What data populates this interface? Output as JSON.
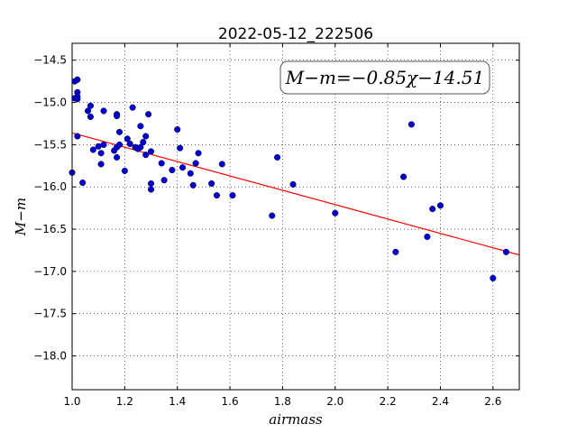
{
  "chart_data": {
    "type": "scatter",
    "title": "2022-05-12_222506",
    "xlabel": "airmass",
    "ylabel": "M−m",
    "xlim": [
      1.0,
      2.7
    ],
    "ylim": [
      -18.4,
      -14.3
    ],
    "x_ticks": [
      "1.0",
      "1.2",
      "1.4",
      "1.6",
      "1.8",
      "2.0",
      "2.2",
      "2.4",
      "2.6"
    ],
    "y_ticks": [
      "−14.5",
      "−15.0",
      "−15.5",
      "−16.0",
      "−16.5",
      "−17.0",
      "−17.5",
      "−18.0"
    ],
    "grid": true,
    "annotation": "M−m=−0.85χ−14.51",
    "fit": {
      "slope": -0.85,
      "intercept": -14.51,
      "color": "#ff0000"
    },
    "point_color": "#0000cc",
    "points": [
      {
        "x": 1.0,
        "y": -15.83
      },
      {
        "x": 1.01,
        "y": -14.75
      },
      {
        "x": 1.02,
        "y": -14.73
      },
      {
        "x": 1.02,
        "y": -14.88
      },
      {
        "x": 1.02,
        "y": -14.93
      },
      {
        "x": 1.02,
        "y": -14.96
      },
      {
        "x": 1.01,
        "y": -14.95
      },
      {
        "x": 1.02,
        "y": -15.4
      },
      {
        "x": 1.04,
        "y": -15.95
      },
      {
        "x": 1.06,
        "y": -15.1
      },
      {
        "x": 1.07,
        "y": -15.04
      },
      {
        "x": 1.07,
        "y": -15.17
      },
      {
        "x": 1.08,
        "y": -15.56
      },
      {
        "x": 1.1,
        "y": -15.52
      },
      {
        "x": 1.11,
        "y": -15.6
      },
      {
        "x": 1.11,
        "y": -15.73
      },
      {
        "x": 1.12,
        "y": -15.1
      },
      {
        "x": 1.12,
        "y": -15.5
      },
      {
        "x": 1.16,
        "y": -15.57
      },
      {
        "x": 1.17,
        "y": -15.53
      },
      {
        "x": 1.17,
        "y": -15.65
      },
      {
        "x": 1.17,
        "y": -15.14
      },
      {
        "x": 1.17,
        "y": -15.16
      },
      {
        "x": 1.18,
        "y": -15.35
      },
      {
        "x": 1.18,
        "y": -15.5
      },
      {
        "x": 1.2,
        "y": -15.81
      },
      {
        "x": 1.21,
        "y": -15.43
      },
      {
        "x": 1.22,
        "y": -15.49
      },
      {
        "x": 1.23,
        "y": -15.06
      },
      {
        "x": 1.24,
        "y": -15.53
      },
      {
        "x": 1.25,
        "y": -15.55
      },
      {
        "x": 1.26,
        "y": -15.28
      },
      {
        "x": 1.26,
        "y": -15.53
      },
      {
        "x": 1.27,
        "y": -15.47
      },
      {
        "x": 1.28,
        "y": -15.4
      },
      {
        "x": 1.28,
        "y": -15.62
      },
      {
        "x": 1.29,
        "y": -15.14
      },
      {
        "x": 1.3,
        "y": -15.58
      },
      {
        "x": 1.3,
        "y": -16.03
      },
      {
        "x": 1.3,
        "y": -15.96
      },
      {
        "x": 1.34,
        "y": -15.72
      },
      {
        "x": 1.35,
        "y": -15.92
      },
      {
        "x": 1.38,
        "y": -15.8
      },
      {
        "x": 1.4,
        "y": -15.32
      },
      {
        "x": 1.41,
        "y": -15.54
      },
      {
        "x": 1.42,
        "y": -15.77
      },
      {
        "x": 1.45,
        "y": -15.84
      },
      {
        "x": 1.46,
        "y": -15.98
      },
      {
        "x": 1.47,
        "y": -15.72
      },
      {
        "x": 1.48,
        "y": -15.6
      },
      {
        "x": 1.53,
        "y": -15.96
      },
      {
        "x": 1.55,
        "y": -16.1
      },
      {
        "x": 1.57,
        "y": -15.73
      },
      {
        "x": 1.61,
        "y": -16.1
      },
      {
        "x": 1.76,
        "y": -16.34
      },
      {
        "x": 1.78,
        "y": -15.65
      },
      {
        "x": 1.84,
        "y": -15.97
      },
      {
        "x": 2.0,
        "y": -16.31
      },
      {
        "x": 2.23,
        "y": -16.77
      },
      {
        "x": 2.26,
        "y": -15.88
      },
      {
        "x": 2.29,
        "y": -15.26
      },
      {
        "x": 2.35,
        "y": -16.59
      },
      {
        "x": 2.37,
        "y": -16.26
      },
      {
        "x": 2.4,
        "y": -16.22
      },
      {
        "x": 2.6,
        "y": -17.08
      },
      {
        "x": 2.65,
        "y": -16.77
      }
    ]
  }
}
